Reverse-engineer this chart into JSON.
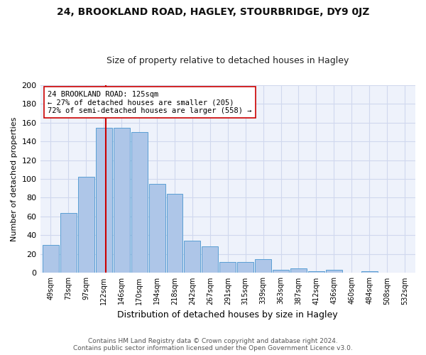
{
  "title1": "24, BROOKLAND ROAD, HAGLEY, STOURBRIDGE, DY9 0JZ",
  "title2": "Size of property relative to detached houses in Hagley",
  "xlabel": "Distribution of detached houses by size in Hagley",
  "ylabel": "Number of detached properties",
  "bin_labels": [
    "49sqm",
    "73sqm",
    "97sqm",
    "122sqm",
    "146sqm",
    "170sqm",
    "194sqm",
    "218sqm",
    "242sqm",
    "267sqm",
    "291sqm",
    "315sqm",
    "339sqm",
    "363sqm",
    "387sqm",
    "412sqm",
    "436sqm",
    "460sqm",
    "484sqm",
    "508sqm",
    "532sqm"
  ],
  "bar_heights": [
    30,
    64,
    102,
    154,
    154,
    150,
    95,
    84,
    34,
    28,
    12,
    12,
    15,
    3,
    5,
    2,
    3,
    0,
    2,
    0,
    0
  ],
  "bar_color": "#aec6e8",
  "bar_edge_color": "#5a9fd4",
  "vline_color": "#cc0000",
  "annotation_text": "24 BROOKLAND ROAD: 125sqm\n← 27% of detached houses are smaller (205)\n72% of semi-detached houses are larger (558) →",
  "annotation_box_color": "#ffffff",
  "annotation_box_edge": "#cc0000",
  "ylim": [
    0,
    200
  ],
  "yticks": [
    0,
    20,
    40,
    60,
    80,
    100,
    120,
    140,
    160,
    180,
    200
  ],
  "footer1": "Contains HM Land Registry data © Crown copyright and database right 2024.",
  "footer2": "Contains public sector information licensed under the Open Government Licence v3.0.",
  "bg_color": "#eef2fb",
  "grid_color": "#d0d8ee"
}
